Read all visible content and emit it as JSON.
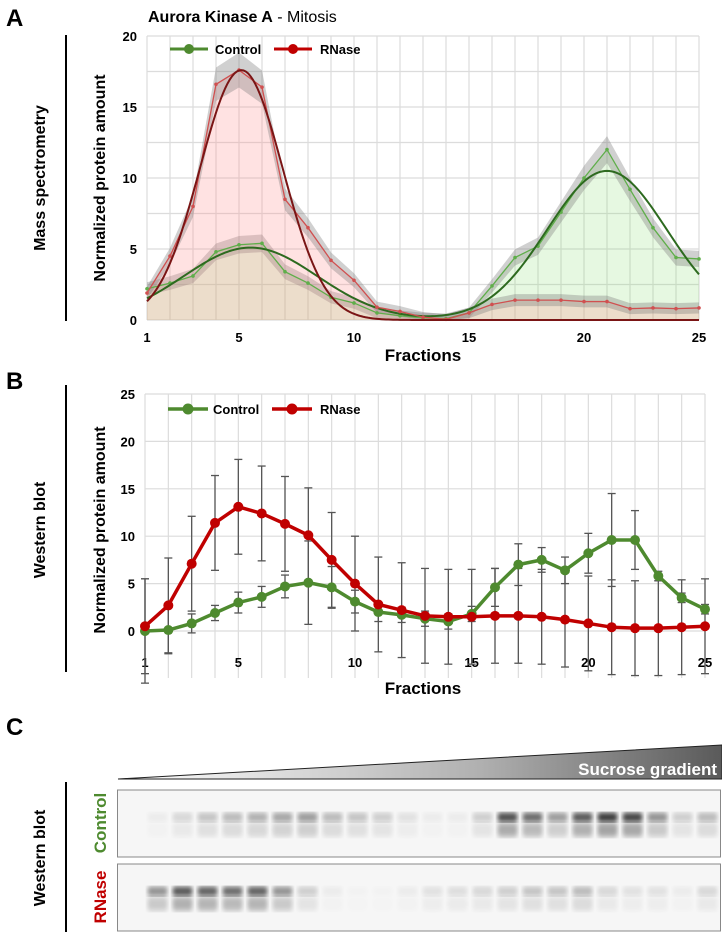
{
  "panel_labels": {
    "a": "A",
    "b": "B",
    "c": "C"
  },
  "row_labels": {
    "a": "Mass spectrometry",
    "b": "Western blot",
    "c": "Western blot"
  },
  "colors": {
    "control": "#4e8a2f",
    "rnase": "#c00000",
    "control_fit": "#2d6a1f",
    "rnase_fit": "#7a1515"
  },
  "chart_data": [
    {
      "type": "line",
      "title_bold": "Aurora Kinase A",
      "title_rest": " - Mitosis",
      "xlabel": "Fractions",
      "ylabel": "Normalized protein amount",
      "xlim": [
        1,
        25
      ],
      "ylim": [
        0,
        20
      ],
      "xticks": [
        "1",
        "5",
        "10",
        "15",
        "20",
        "25"
      ],
      "yticks": [
        "0",
        "5",
        "10",
        "15",
        "20"
      ],
      "grid": true,
      "legend": {
        "position": "top-left",
        "entries": [
          "Control",
          "RNase"
        ]
      },
      "x": [
        1,
        2,
        3,
        4,
        5,
        6,
        7,
        8,
        9,
        10,
        11,
        12,
        13,
        14,
        15,
        16,
        17,
        18,
        19,
        20,
        21,
        22,
        23,
        24,
        25
      ],
      "series": [
        {
          "name": "Control",
          "values": [
            2.2,
            2.6,
            3.1,
            4.8,
            5.3,
            5.4,
            3.4,
            2.6,
            1.6,
            1.2,
            0.5,
            0.3,
            0.15,
            0.1,
            0.5,
            2.4,
            4.4,
            5.2,
            7.6,
            10.0,
            12.0,
            9.2,
            6.5,
            4.4,
            4.3
          ],
          "fit_gaussians": [
            {
              "amplitude": 5.1,
              "center": 5.5,
              "sigma": 2.9
            },
            {
              "amplitude": 10.5,
              "center": 21,
              "sigma": 2.6
            }
          ]
        },
        {
          "name": "RNase",
          "values": [
            1.9,
            4.5,
            8.0,
            16.6,
            17.6,
            16.4,
            8.5,
            6.5,
            4.2,
            2.8,
            0.9,
            0.6,
            0.2,
            0.05,
            0.5,
            1.1,
            1.4,
            1.4,
            1.4,
            1.3,
            1.3,
            0.8,
            0.85,
            0.8,
            0.85
          ],
          "fit_gaussians": [
            {
              "amplitude": 17.6,
              "center": 5.1,
              "sigma": 1.8
            }
          ]
        }
      ]
    },
    {
      "type": "line",
      "xlabel": "Fractions",
      "ylabel": "Normalized protein amount",
      "xlim": [
        1,
        25
      ],
      "ylim": [
        -5,
        25
      ],
      "xticks": [
        "1",
        "5",
        "10",
        "15",
        "20",
        "25"
      ],
      "yticks": [
        "0",
        "5",
        "10",
        "15",
        "20",
        "25"
      ],
      "grid": true,
      "legend": {
        "position": "top-left",
        "entries": [
          "Control",
          "RNase"
        ]
      },
      "x": [
        1,
        2,
        3,
        4,
        5,
        6,
        7,
        8,
        9,
        10,
        11,
        12,
        13,
        14,
        15,
        16,
        17,
        18,
        19,
        20,
        21,
        22,
        23,
        24,
        25
      ],
      "series": [
        {
          "name": "Control",
          "values": [
            0,
            0.1,
            0.8,
            1.9,
            3.0,
            3.6,
            4.7,
            5.1,
            4.6,
            3.1,
            2.0,
            1.7,
            1.3,
            1.0,
            1.8,
            4.6,
            7.0,
            7.5,
            6.4,
            8.2,
            9.6,
            9.6,
            5.8,
            3.5,
            2.3
          ],
          "errors": [
            5.5,
            2.5,
            1.0,
            0.8,
            1.1,
            1.1,
            1.2,
            4.4,
            2.2,
            1.2,
            1.0,
            0.8,
            0.8,
            0.8,
            0.8,
            2.0,
            2.2,
            1.3,
            1.4,
            2.1,
            4.9,
            3.1,
            0.5,
            0.5,
            0.5
          ]
        },
        {
          "name": "RNase",
          "values": [
            0.5,
            2.7,
            7.1,
            11.4,
            13.1,
            12.4,
            11.3,
            10.1,
            7.5,
            5.0,
            2.8,
            2.2,
            1.6,
            1.5,
            1.5,
            1.6,
            1.6,
            1.5,
            1.2,
            0.8,
            0.4,
            0.3,
            0.3,
            0.4,
            0.5
          ],
          "errors": [
            5,
            5,
            5,
            5,
            5,
            5,
            5,
            5,
            5,
            5,
            5,
            5,
            5,
            5,
            5,
            5,
            5,
            5,
            5,
            5,
            5,
            5,
            5,
            5,
            5
          ]
        }
      ]
    }
  ],
  "blot": {
    "gradient_label": "Sucrose gradient",
    "rows": [
      {
        "label": "Control",
        "intensities": [
          0,
          0.05,
          0.15,
          0.25,
          0.3,
          0.35,
          0.4,
          0.45,
          0.3,
          0.25,
          0.2,
          0.1,
          0.05,
          0.05,
          0.2,
          0.85,
          0.7,
          0.45,
          0.8,
          0.95,
          0.9,
          0.5,
          0.2,
          0.3
        ]
      },
      {
        "label": "RNase",
        "intensities": [
          0,
          0.5,
          0.8,
          0.75,
          0.7,
          0.75,
          0.5,
          0.2,
          0.05,
          0.02,
          0.02,
          0.05,
          0.1,
          0.12,
          0.15,
          0.2,
          0.25,
          0.25,
          0.3,
          0.15,
          0.1,
          0.1,
          0.05,
          0.15
        ]
      }
    ]
  }
}
